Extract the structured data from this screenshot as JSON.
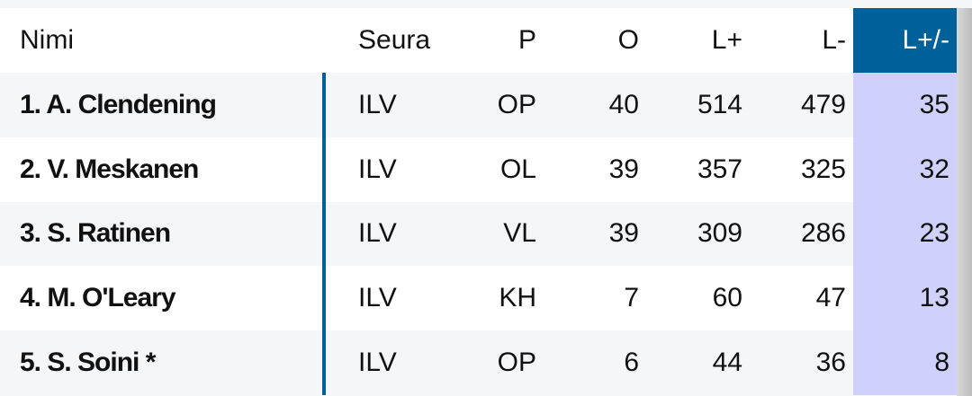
{
  "columns": {
    "name": "Nimi",
    "club": "Seura",
    "pos": "P",
    "games": "O",
    "plus": "L+",
    "minus": "L-",
    "diff": "L+/-"
  },
  "colors": {
    "sort_header": "#00609a",
    "sort_column": "#cfd0fc",
    "separator": "#00609a"
  },
  "rows": [
    {
      "name": "1.  A. Clendening",
      "club": "ILV",
      "pos": "OP",
      "games": "40",
      "plus": "514",
      "minus": "479",
      "diff": "35"
    },
    {
      "name": "2.  V. Meskanen",
      "club": "ILV",
      "pos": "OL",
      "games": "39",
      "plus": "357",
      "minus": "325",
      "diff": "32"
    },
    {
      "name": "3.  S. Ratinen",
      "club": "ILV",
      "pos": "VL",
      "games": "39",
      "plus": "309",
      "minus": "286",
      "diff": "23"
    },
    {
      "name": "4.  M. O'Leary",
      "club": "ILV",
      "pos": "KH",
      "games": "7",
      "plus": "60",
      "minus": "47",
      "diff": "13"
    },
    {
      "name": "5.  S. Soini *",
      "club": "ILV",
      "pos": "OP",
      "games": "6",
      "plus": "44",
      "minus": "36",
      "diff": "8"
    }
  ]
}
